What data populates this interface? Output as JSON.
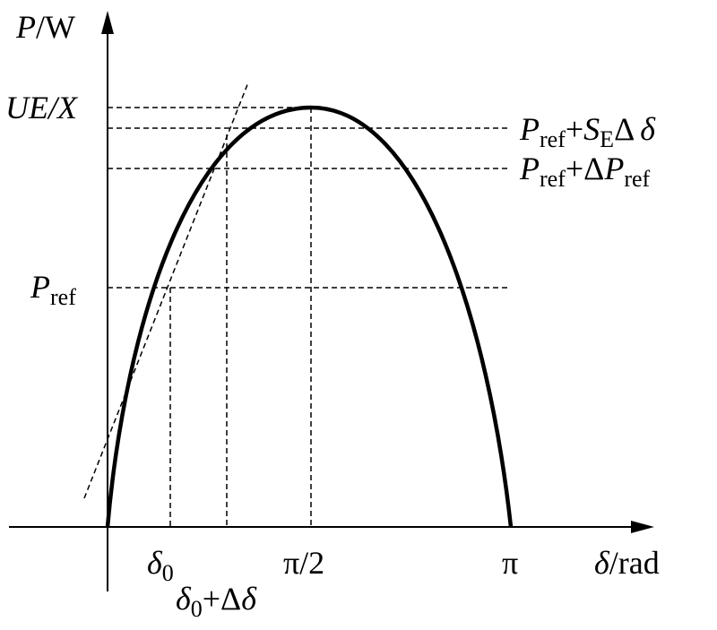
{
  "labels": {
    "p_w": [
      "P",
      "/W"
    ],
    "ue_x": [
      "UE",
      "/X"
    ],
    "pref": [
      "P",
      "ref"
    ],
    "pref_se": [
      "P",
      "ref",
      "+",
      "S",
      "E",
      "Δ",
      "δ"
    ],
    "pref_dp": [
      "P",
      "ref",
      "+Δ",
      "P",
      "ref"
    ],
    "delta0": [
      "δ",
      "0"
    ],
    "pi_half": [
      "π/2"
    ],
    "pi": [
      "π"
    ],
    "delta_rad": [
      "δ",
      "/rad"
    ],
    "delta0_dd": [
      "δ",
      "0",
      "+Δ",
      "δ"
    ]
  }
}
